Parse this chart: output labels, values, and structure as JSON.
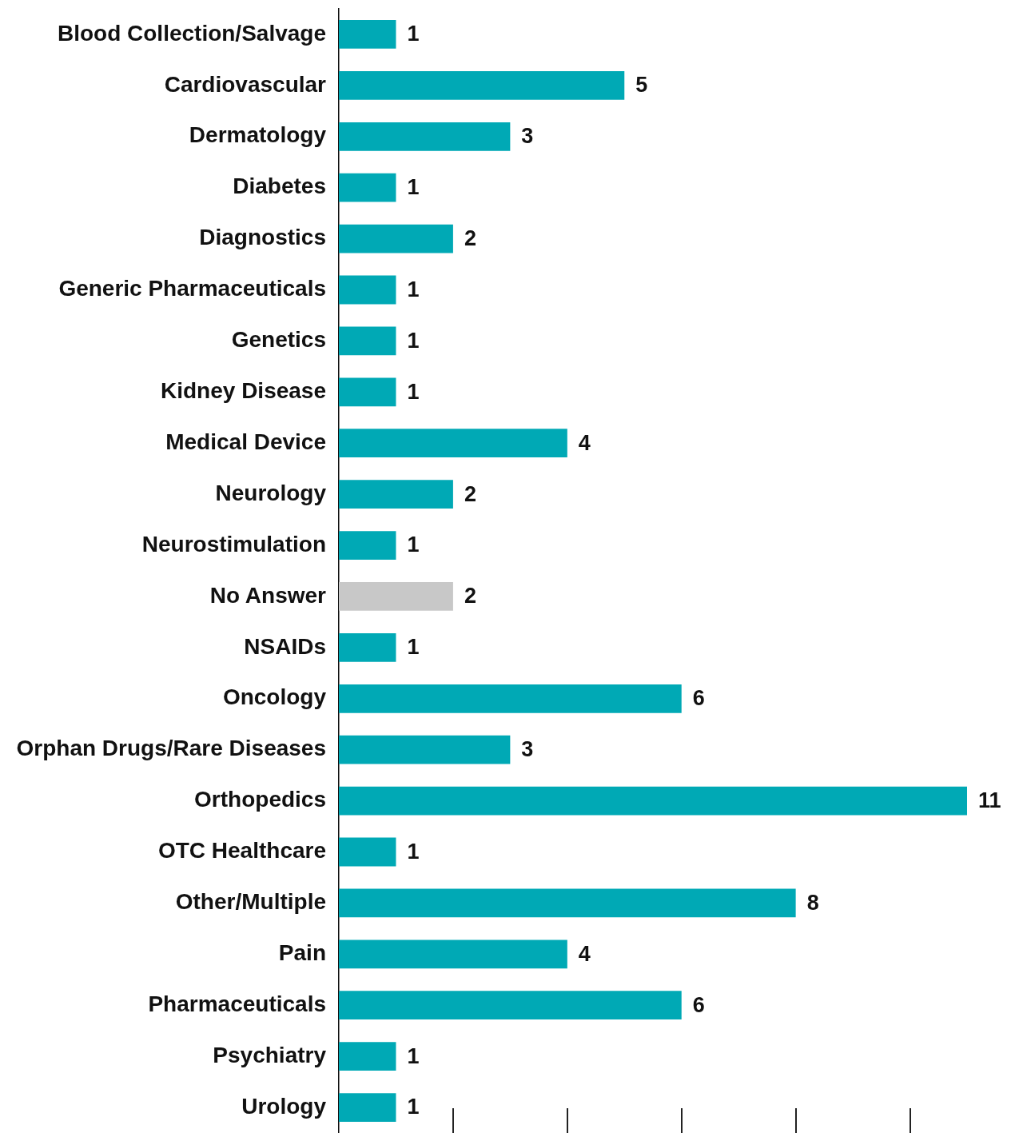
{
  "chart_data": {
    "type": "bar",
    "orientation": "horizontal",
    "categories": [
      "Blood Collection/Salvage",
      "Cardiovascular",
      "Dermatology",
      "Diabetes",
      "Diagnostics",
      "Generic Pharmaceuticals",
      "Genetics",
      "Kidney Disease",
      "Medical Device",
      "Neurology",
      "Neurostimulation",
      "No Answer",
      "NSAIDs",
      "Oncology",
      "Orphan Drugs/Rare Diseases",
      "Orthopedics",
      "OTC Healthcare",
      "Other/Multiple",
      "Pain",
      "Pharmaceuticals",
      "Psychiatry",
      "Urology"
    ],
    "values": [
      1,
      5,
      3,
      1,
      2,
      1,
      1,
      1,
      4,
      2,
      1,
      2,
      1,
      6,
      3,
      11,
      1,
      8,
      4,
      6,
      1,
      1
    ],
    "colors": [
      "#00a9b5",
      "#00a9b5",
      "#00a9b5",
      "#00a9b5",
      "#00a9b5",
      "#00a9b5",
      "#00a9b5",
      "#00a9b5",
      "#00a9b5",
      "#00a9b5",
      "#00a9b5",
      "#c8c8c8",
      "#00a9b5",
      "#00a9b5",
      "#00a9b5",
      "#00a9b5",
      "#00a9b5",
      "#00a9b5",
      "#00a9b5",
      "#00a9b5",
      "#00a9b5",
      "#00a9b5"
    ],
    "tick_labels": "y",
    "data_labels": true
  }
}
